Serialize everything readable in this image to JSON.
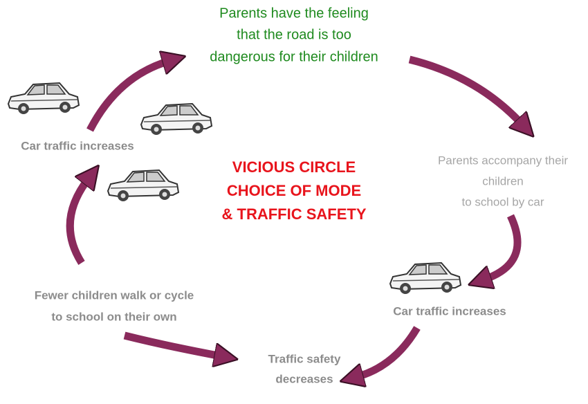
{
  "title": [
    "VICIOUS CIRCLE",
    "CHOICE OF MODE",
    "& TRAFFIC SAFETY"
  ],
  "nodes": [
    {
      "lines": [
        "Parents have the feeling",
        "that the road is too",
        "dangerous for their children"
      ]
    },
    {
      "lines": [
        "Parents accompany their",
        "children",
        "to school by car"
      ]
    },
    {
      "lines": [
        "Car traffic increases"
      ]
    },
    {
      "lines": [
        "Traffic safety",
        "decreases"
      ]
    },
    {
      "lines": [
        "Fewer children walk or cycle",
        "to school on their own"
      ]
    },
    {
      "lines": [
        "Car traffic increases"
      ]
    }
  ]
}
